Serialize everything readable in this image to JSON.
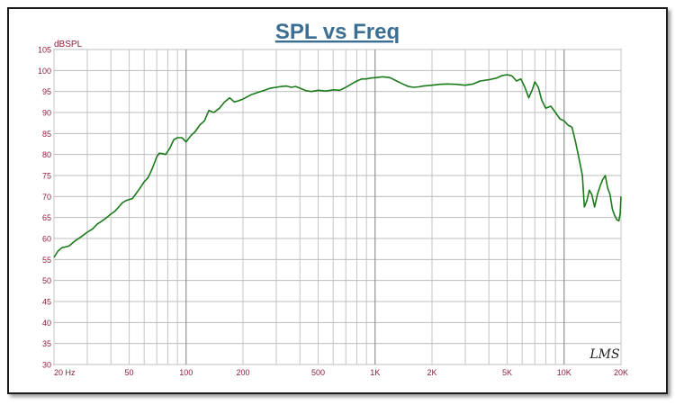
{
  "chart_data": {
    "type": "line",
    "title": "SPL vs Freq",
    "ylabel": "dBSPL",
    "xlabel": "",
    "x_scale": "log",
    "xlim": [
      20,
      20000
    ],
    "ylim": [
      30,
      105
    ],
    "y_ticks": [
      30,
      35,
      40,
      45,
      50,
      55,
      60,
      65,
      70,
      75,
      80,
      85,
      90,
      95,
      100,
      105
    ],
    "x_tick_labels": [
      {
        "value": 20,
        "label": "20  Hz"
      },
      {
        "value": 50,
        "label": "50"
      },
      {
        "value": 100,
        "label": "100"
      },
      {
        "value": 200,
        "label": "200"
      },
      {
        "value": 500,
        "label": "500"
      },
      {
        "value": 1000,
        "label": "1K"
      },
      {
        "value": 2000,
        "label": "2K"
      },
      {
        "value": 5000,
        "label": "5K"
      },
      {
        "value": 10000,
        "label": "10K"
      },
      {
        "value": 20000,
        "label": "20K"
      }
    ],
    "grid": true,
    "watermark": "LMS",
    "series": [
      {
        "color": "#1a7a1a",
        "points": [
          [
            20,
            55.5
          ],
          [
            21,
            57
          ],
          [
            22,
            57.8
          ],
          [
            24,
            58.2
          ],
          [
            26,
            59.5
          ],
          [
            28,
            60.5
          ],
          [
            30,
            61.5
          ],
          [
            32,
            62.3
          ],
          [
            34,
            63.5
          ],
          [
            36,
            64.2
          ],
          [
            38,
            65
          ],
          [
            40,
            65.8
          ],
          [
            42,
            66.5
          ],
          [
            44,
            67.5
          ],
          [
            46,
            68.5
          ],
          [
            48,
            69
          ],
          [
            50,
            69.3
          ],
          [
            52,
            69.5
          ],
          [
            54,
            70.5
          ],
          [
            56,
            71.5
          ],
          [
            58,
            72.5
          ],
          [
            60,
            73.5
          ],
          [
            63,
            74.5
          ],
          [
            66,
            76.5
          ],
          [
            70,
            79.5
          ],
          [
            72,
            80.3
          ],
          [
            75,
            80.2
          ],
          [
            78,
            80
          ],
          [
            82,
            81.5
          ],
          [
            86,
            83.5
          ],
          [
            90,
            84
          ],
          [
            95,
            84
          ],
          [
            100,
            83
          ],
          [
            106,
            84.5
          ],
          [
            112,
            85.5
          ],
          [
            118,
            87
          ],
          [
            125,
            88
          ],
          [
            132,
            90.5
          ],
          [
            140,
            90
          ],
          [
            150,
            91
          ],
          [
            160,
            92.5
          ],
          [
            170,
            93.5
          ],
          [
            180,
            92.5
          ],
          [
            190,
            92.8
          ],
          [
            200,
            93.2
          ],
          [
            220,
            94.2
          ],
          [
            240,
            94.8
          ],
          [
            260,
            95.3
          ],
          [
            280,
            95.8
          ],
          [
            300,
            96
          ],
          [
            320,
            96.2
          ],
          [
            340,
            96.3
          ],
          [
            360,
            96
          ],
          [
            380,
            96.2
          ],
          [
            400,
            95.8
          ],
          [
            430,
            95.2
          ],
          [
            460,
            95
          ],
          [
            500,
            95.3
          ],
          [
            550,
            95.1
          ],
          [
            600,
            95.4
          ],
          [
            650,
            95.3
          ],
          [
            700,
            96
          ],
          [
            750,
            96.8
          ],
          [
            800,
            97.5
          ],
          [
            850,
            98
          ],
          [
            900,
            98
          ],
          [
            950,
            98.2
          ],
          [
            1000,
            98.3
          ],
          [
            1100,
            98.5
          ],
          [
            1200,
            98.3
          ],
          [
            1300,
            97.5
          ],
          [
            1400,
            96.8
          ],
          [
            1500,
            96.2
          ],
          [
            1600,
            96
          ],
          [
            1700,
            96.1
          ],
          [
            1800,
            96.3
          ],
          [
            2000,
            96.5
          ],
          [
            2200,
            96.7
          ],
          [
            2400,
            96.8
          ],
          [
            2700,
            96.7
          ],
          [
            3000,
            96.5
          ],
          [
            3300,
            96.8
          ],
          [
            3600,
            97.5
          ],
          [
            4000,
            97.8
          ],
          [
            4400,
            98.2
          ],
          [
            4700,
            98.8
          ],
          [
            5000,
            99
          ],
          [
            5300,
            98.7
          ],
          [
            5600,
            97.5
          ],
          [
            5900,
            98
          ],
          [
            6200,
            96
          ],
          [
            6500,
            93.5
          ],
          [
            6800,
            95.5
          ],
          [
            7000,
            97.3
          ],
          [
            7300,
            96
          ],
          [
            7600,
            93
          ],
          [
            8000,
            91
          ],
          [
            8500,
            91.5
          ],
          [
            9000,
            90
          ],
          [
            9500,
            88.5
          ],
          [
            10000,
            88
          ],
          [
            10500,
            87
          ],
          [
            11000,
            86.5
          ],
          [
            11500,
            83
          ],
          [
            12000,
            79
          ],
          [
            12500,
            75
          ],
          [
            12800,
            67.5
          ],
          [
            13200,
            69
          ],
          [
            13600,
            71.5
          ],
          [
            14000,
            70.5
          ],
          [
            14500,
            67.5
          ],
          [
            15000,
            70.5
          ],
          [
            15500,
            72.5
          ],
          [
            16000,
            74
          ],
          [
            16500,
            75
          ],
          [
            17000,
            72
          ],
          [
            17500,
            70.5
          ],
          [
            18000,
            67
          ],
          [
            18500,
            65.5
          ],
          [
            19000,
            64.5
          ],
          [
            19500,
            64.2
          ],
          [
            19800,
            66
          ],
          [
            20000,
            70
          ]
        ]
      }
    ]
  }
}
